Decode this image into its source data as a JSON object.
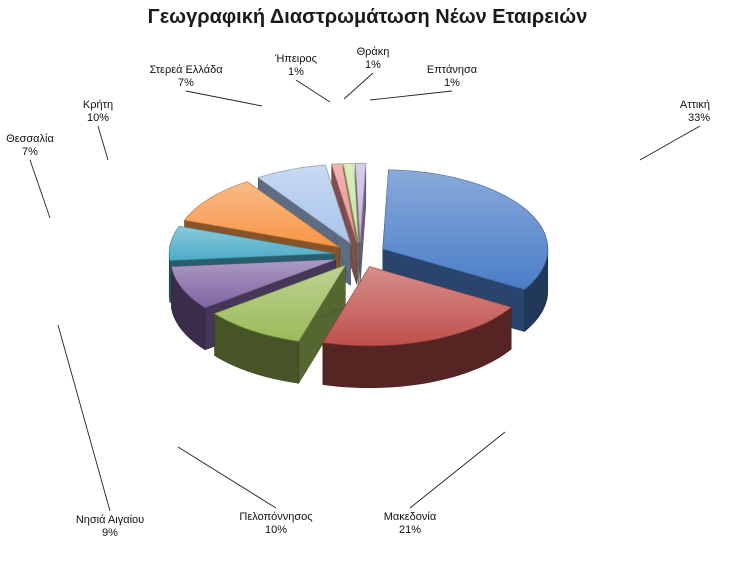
{
  "chart_data": {
    "type": "pie",
    "title": "Γεωγραφική Διαστρωμάτωση Νέων Εταιρειών",
    "slices": [
      {
        "label": "Αττική",
        "value": 33,
        "value_label": "33%",
        "color": "#4a7dc7"
      },
      {
        "label": "Μακεδονία",
        "value": 21,
        "value_label": "21%",
        "color": "#c0504d"
      },
      {
        "label": "Πελοπόννησος",
        "value": 10,
        "value_label": "10%",
        "color": "#9bbb59"
      },
      {
        "label": "Νησιά Αιγαίου",
        "value": 9,
        "value_label": "9%",
        "color": "#8064a2"
      },
      {
        "label": "Θεσσαλία",
        "value": 7,
        "value_label": "7%",
        "color": "#4bacc6"
      },
      {
        "label": "Κρήτη",
        "value": 10,
        "value_label": "10%",
        "color": "#f79646"
      },
      {
        "label": "Στερεά Ελλάδα",
        "value": 7,
        "value_label": "7%",
        "color": "#a9c4eb"
      },
      {
        "label": "Ήπειρος",
        "value": 1,
        "value_label": "1%",
        "color": "#e8908c"
      },
      {
        "label": "Θράκη",
        "value": 1,
        "value_label": "1%",
        "color": "#c9e39a"
      },
      {
        "label": "Επτάνησα",
        "value": 1,
        "value_label": "1%",
        "color": "#c3b3dd"
      }
    ],
    "style": "3d-exploded"
  }
}
